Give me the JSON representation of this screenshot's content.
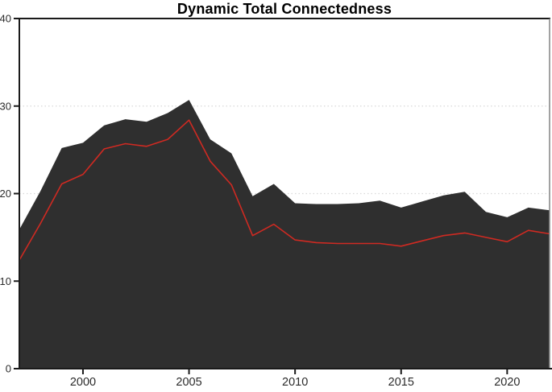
{
  "figure": {
    "title": "Dynamic Total Connectedness"
  },
  "colors": {
    "background": "#ffffff",
    "area_fill": "#2f2f2f",
    "red_line": "#cf2a22",
    "axis": "#1a1a1a",
    "panel_border_right": "#8a8a8a",
    "gridline": "#d9d9d9",
    "tick_label": "#2b2b2b",
    "title_text": "#000000"
  },
  "chart_data": {
    "type": "area",
    "title": "Dynamic Total Connectedness",
    "xlabel": "",
    "ylabel": "",
    "x": [
      1997,
      1998,
      1999,
      2000,
      2001,
      2002,
      2003,
      2004,
      2005,
      2006,
      2007,
      2008,
      2009,
      2010,
      2011,
      2012,
      2013,
      2014,
      2015,
      2016,
      2017,
      2018,
      2019,
      2020,
      2021,
      2022
    ],
    "series": [
      {
        "name": "total-connectedness-band",
        "type": "area",
        "color": "#2f2f2f",
        "values": [
          15.9,
          20.3,
          25.2,
          25.8,
          27.8,
          28.5,
          28.2,
          29.2,
          30.7,
          26.2,
          24.6,
          19.7,
          21.1,
          18.9,
          18.8,
          18.8,
          18.9,
          19.2,
          18.4,
          19.1,
          19.8,
          20.2,
          17.9,
          17.3,
          18.4,
          18.1
        ]
      },
      {
        "name": "total-connectedness-line",
        "type": "line",
        "color": "#cf2a22",
        "values": [
          12.4,
          16.6,
          21.1,
          22.2,
          25.1,
          25.7,
          25.4,
          26.2,
          28.4,
          23.7,
          21.0,
          15.2,
          16.5,
          14.7,
          14.4,
          14.3,
          14.3,
          14.3,
          14.0,
          14.6,
          15.2,
          15.5,
          15.0,
          14.5,
          15.8,
          15.4
        ]
      }
    ],
    "xlim": [
      1997,
      2022
    ],
    "ylim": [
      0,
      40
    ],
    "xticks": [
      2000,
      2005,
      2010,
      2015,
      2020
    ],
    "xtick_labels": [
      "2000",
      "2005",
      "2010",
      "2015",
      "2020"
    ],
    "yticks": [
      0,
      10,
      20,
      30,
      40
    ],
    "ytick_labels": [
      "0",
      "10",
      "20",
      "30",
      "40"
    ],
    "ygrid": [
      10,
      20,
      30
    ],
    "grid_style": "dotted",
    "legend": "none"
  }
}
